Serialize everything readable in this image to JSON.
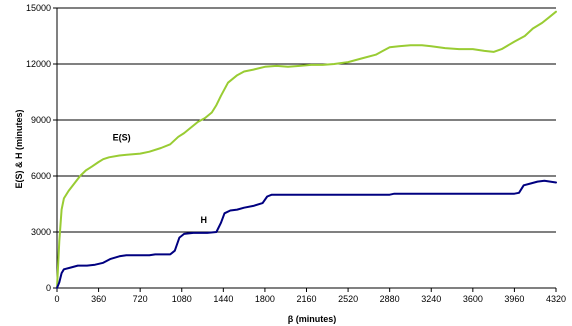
{
  "chart_data": {
    "type": "line",
    "title": "",
    "xlabel": "β (minutes)",
    "ylabel": "E(S) & H (minutes)",
    "xlim": [
      0,
      4320
    ],
    "ylim": [
      0,
      15000
    ],
    "x_ticks": [
      "0",
      "360",
      "720",
      "1080",
      "1440",
      "1800",
      "2160",
      "2520",
      "2880",
      "3240",
      "3600",
      "3960",
      "4320"
    ],
    "y_ticks": [
      "0",
      "3000",
      "6000",
      "9000",
      "12000",
      "15000"
    ],
    "grid": "horizontal",
    "legend": "none",
    "series": [
      {
        "name": "E(S)",
        "color": "#99cc33",
        "label_at": [
          560,
          7900
        ],
        "points": [
          [
            0,
            0
          ],
          [
            20,
            2500
          ],
          [
            40,
            4200
          ],
          [
            60,
            4800
          ],
          [
            100,
            5200
          ],
          [
            150,
            5600
          ],
          [
            200,
            6000
          ],
          [
            250,
            6300
          ],
          [
            300,
            6500
          ],
          [
            360,
            6750
          ],
          [
            400,
            6900
          ],
          [
            450,
            7000
          ],
          [
            540,
            7100
          ],
          [
            630,
            7150
          ],
          [
            720,
            7200
          ],
          [
            800,
            7300
          ],
          [
            900,
            7500
          ],
          [
            980,
            7700
          ],
          [
            1050,
            8100
          ],
          [
            1100,
            8300
          ],
          [
            1160,
            8600
          ],
          [
            1220,
            8900
          ],
          [
            1280,
            9100
          ],
          [
            1340,
            9400
          ],
          [
            1380,
            9800
          ],
          [
            1420,
            10300
          ],
          [
            1480,
            11000
          ],
          [
            1560,
            11400
          ],
          [
            1620,
            11600
          ],
          [
            1700,
            11700
          ],
          [
            1800,
            11850
          ],
          [
            1900,
            11900
          ],
          [
            2000,
            11850
          ],
          [
            2100,
            11900
          ],
          [
            2200,
            11950
          ],
          [
            2300,
            11950
          ],
          [
            2400,
            12000
          ],
          [
            2520,
            12100
          ],
          [
            2640,
            12300
          ],
          [
            2760,
            12500
          ],
          [
            2880,
            12900
          ],
          [
            2960,
            12950
          ],
          [
            3060,
            13000
          ],
          [
            3160,
            13000
          ],
          [
            3240,
            12950
          ],
          [
            3360,
            12850
          ],
          [
            3480,
            12800
          ],
          [
            3600,
            12800
          ],
          [
            3700,
            12700
          ],
          [
            3780,
            12650
          ],
          [
            3850,
            12800
          ],
          [
            3960,
            13200
          ],
          [
            4050,
            13500
          ],
          [
            4120,
            13900
          ],
          [
            4200,
            14200
          ],
          [
            4260,
            14500
          ],
          [
            4320,
            14800
          ]
        ]
      },
      {
        "name": "H",
        "color": "#000080",
        "label_at": [
          1270,
          3480
        ],
        "points": [
          [
            0,
            0
          ],
          [
            20,
            300
          ],
          [
            40,
            800
          ],
          [
            60,
            1000
          ],
          [
            120,
            1100
          ],
          [
            180,
            1200
          ],
          [
            260,
            1200
          ],
          [
            330,
            1250
          ],
          [
            400,
            1350
          ],
          [
            460,
            1550
          ],
          [
            540,
            1700
          ],
          [
            600,
            1750
          ],
          [
            700,
            1750
          ],
          [
            800,
            1750
          ],
          [
            850,
            1800
          ],
          [
            980,
            1800
          ],
          [
            1020,
            2000
          ],
          [
            1060,
            2700
          ],
          [
            1100,
            2900
          ],
          [
            1180,
            2950
          ],
          [
            1300,
            2950
          ],
          [
            1380,
            3000
          ],
          [
            1420,
            3500
          ],
          [
            1450,
            4000
          ],
          [
            1500,
            4150
          ],
          [
            1560,
            4200
          ],
          [
            1620,
            4300
          ],
          [
            1700,
            4400
          ],
          [
            1780,
            4550
          ],
          [
            1820,
            4900
          ],
          [
            1860,
            5000
          ],
          [
            1950,
            5000
          ],
          [
            2160,
            5000
          ],
          [
            2520,
            5000
          ],
          [
            2880,
            5000
          ],
          [
            2920,
            5050
          ],
          [
            3240,
            5050
          ],
          [
            3600,
            5050
          ],
          [
            3960,
            5050
          ],
          [
            4000,
            5100
          ],
          [
            4040,
            5500
          ],
          [
            4100,
            5600
          ],
          [
            4160,
            5700
          ],
          [
            4220,
            5750
          ],
          [
            4320,
            5650
          ]
        ]
      }
    ]
  }
}
